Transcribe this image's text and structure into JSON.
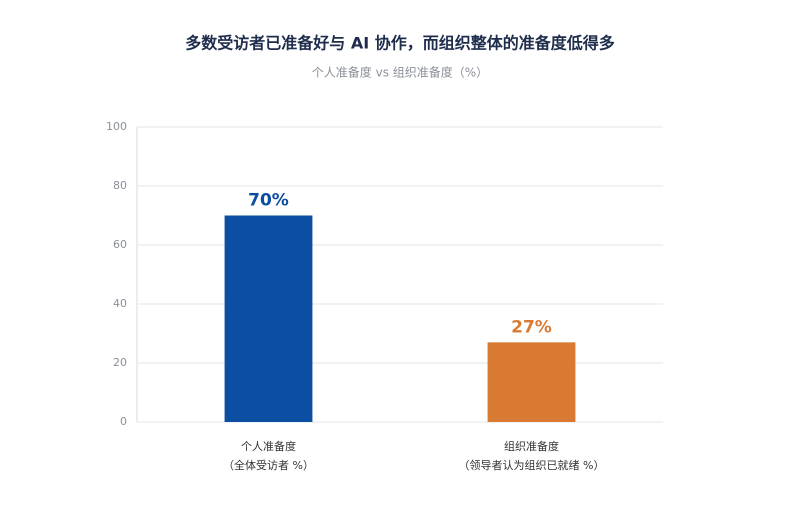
{
  "chart_data": {
    "type": "bar",
    "title": "多数受访者已准备好与 AI 协作，而组织整体的准备度低得多",
    "subtitle": "个人准备度 vs 组织准备度（%）",
    "categories": [
      "个人准备度",
      "组织准备度"
    ],
    "category_notes": [
      "（全体受访者 %）",
      "（领导者认为组织已就绪 %）"
    ],
    "values": [
      70,
      27
    ],
    "value_labels": [
      "70%",
      "27%"
    ],
    "colors": [
      "#0b4ea2",
      "#d97a33"
    ],
    "ylim": [
      0,
      100
    ],
    "yticks": [
      0,
      20,
      40,
      60,
      80,
      100
    ],
    "grid": true
  }
}
